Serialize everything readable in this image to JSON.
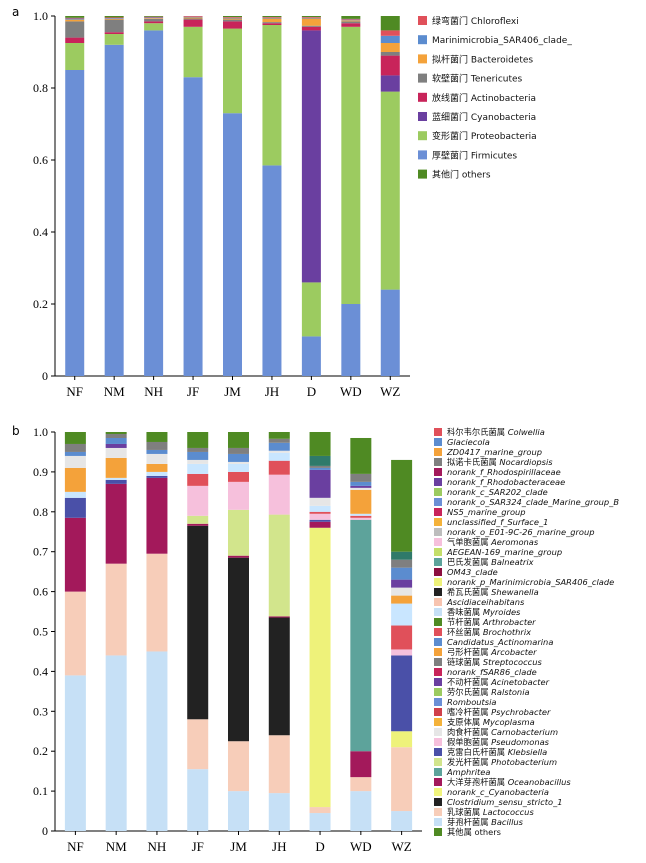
{
  "chart_data": [
    {
      "panel": "a",
      "type": "bar",
      "stacked": true,
      "categories": [
        "NF",
        "NM",
        "NH",
        "JF",
        "JM",
        "JH",
        "D",
        "WD",
        "WZ"
      ],
      "ylim": [
        0,
        1.0
      ],
      "yticks": [
        "0",
        "0.2",
        "0.4",
        "0.6",
        "0.8",
        "1.0"
      ],
      "series": [
        {
          "name": "厚壁菌门 Firmicutes",
          "color": "#6b8fd6",
          "values": [
            0.85,
            0.92,
            0.96,
            0.83,
            0.73,
            0.585,
            0.11,
            0.2,
            0.24
          ]
        },
        {
          "name": "变形菌门 Proteobacteria",
          "color": "#9ccb60",
          "values": [
            0.075,
            0.03,
            0.02,
            0.14,
            0.235,
            0.39,
            0.15,
            0.77,
            0.55
          ]
        },
        {
          "name": "蓝细菌门 Cyanobacteria",
          "color": "#6a3fa0",
          "values": [
            0,
            0,
            0,
            0,
            0,
            0,
            0.7,
            0,
            0.045
          ]
        },
        {
          "name": "放线菌门 Actinobacteria",
          "color": "#c8245a",
          "values": [
            0.015,
            0.005,
            0.005,
            0.02,
            0.02,
            0.005,
            0.01,
            0.01,
            0.055
          ]
        },
        {
          "name": "软壁菌门 Tenericutes",
          "color": "#7f7f7f",
          "values": [
            0.045,
            0.035,
            0.007,
            0.003,
            0.005,
            0.003,
            0.003,
            0.005,
            0.01
          ]
        },
        {
          "name": "拟杆菌门 Bacteroidetes",
          "color": "#f4a23a",
          "values": [
            0.005,
            0.002,
            0.002,
            0.003,
            0.003,
            0.01,
            0.02,
            0.003,
            0.025
          ]
        },
        {
          "name": "Marinimicrobia_SAR406_clade_",
          "color": "#5b8ccf",
          "values": [
            0.003,
            0.002,
            0.002,
            0.002,
            0.002,
            0.002,
            0.002,
            0.002,
            0.02
          ]
        },
        {
          "name": "绿弯菌门 Chloroflexi",
          "color": "#e0505a",
          "values": [
            0.002,
            0.002,
            0.002,
            0.002,
            0.002,
            0.002,
            0.002,
            0.002,
            0.015
          ]
        },
        {
          "name": "其他门 others",
          "color": "#4f8a23",
          "values": [
            0.005,
            0.004,
            0.002,
            0.0,
            0.003,
            0.003,
            0.003,
            0.008,
            0.04
          ]
        }
      ],
      "legend": [
        {
          "zh": "绿弯菌门",
          "en": "Chloroflexi",
          "color": "#e0505a",
          "italic": false
        },
        {
          "zh": "",
          "en": "Marinimicrobia_SAR406_clade_",
          "color": "#5b8ccf",
          "italic": false
        },
        {
          "zh": "拟杆菌门",
          "en": "Bacteroidetes",
          "color": "#f4a23a",
          "italic": false
        },
        {
          "zh": "软壁菌门",
          "en": "Tenericutes",
          "color": "#7f7f7f",
          "italic": false
        },
        {
          "zh": "放线菌门",
          "en": "Actinobacteria",
          "color": "#c8245a",
          "italic": false
        },
        {
          "zh": "蓝细菌门",
          "en": "Cyanobacteria",
          "color": "#6a3fa0",
          "italic": false
        },
        {
          "zh": "变形菌门",
          "en": "Proteobacteria",
          "color": "#9ccb60",
          "italic": false
        },
        {
          "zh": "厚壁菌门",
          "en": "Firmicutes",
          "color": "#6b8fd6",
          "italic": false
        },
        {
          "zh": "其他门",
          "en": "others",
          "color": "#4f8a23",
          "italic": false
        }
      ]
    },
    {
      "panel": "b",
      "type": "bar",
      "stacked": true,
      "categories": [
        "NF",
        "NM",
        "NH",
        "JF",
        "JM",
        "JH",
        "D",
        "WD",
        "WZ"
      ],
      "ylim": [
        0,
        1.0
      ],
      "yticks": [
        "0",
        "0.1",
        "0.2",
        "0.3",
        "0.4",
        "0.5",
        "0.6",
        "0.7",
        "0.8",
        "0.9",
        "1.0"
      ],
      "series": [
        {
          "name": "芽孢杆菌属 Bacillus",
          "color": "#c6e0f6",
          "values": [
            0.39,
            0.44,
            0.45,
            0.155,
            0.1,
            0.095,
            0.045,
            0.1,
            0.05
          ]
        },
        {
          "name": "乳球菌属 Lactococcus",
          "color": "#f7cdb9",
          "values": [
            0.21,
            0.23,
            0.245,
            0.125,
            0.125,
            0.145,
            0.015,
            0.035,
            0.16
          ]
        },
        {
          "name": "norank_p_Marinimicrobia_SAR406_clade",
          "color": "#eef27a",
          "values": [
            0,
            0,
            0,
            0,
            0,
            0,
            0.7,
            0,
            0.04
          ]
        },
        {
          "name": "Clostridium_sensu_stricto_1",
          "color": "#222222",
          "values": [
            0,
            0,
            0,
            0.485,
            0.46,
            0.295,
            0,
            0,
            0
          ]
        },
        {
          "name": "大洋芽孢杆菌属 Oceanobacillus",
          "color": "#a3195b",
          "values": [
            0.185,
            0.2,
            0.19,
            0.005,
            0.005,
            0.003,
            0.015,
            0.065,
            0
          ]
        },
        {
          "name": "克雷白氏杆菌属 Klebsiella",
          "color": "#4a50a8",
          "values": [
            0.05,
            0.01,
            0.005,
            0,
            0,
            0,
            0.005,
            0,
            0.19
          ]
        },
        {
          "name": "Amphritea",
          "color": "#5da39b",
          "values": [
            0,
            0,
            0,
            0,
            0,
            0,
            0,
            0.58,
            0
          ]
        },
        {
          "name": "发光杆菌属 Photobacterium",
          "color": "#d2e58c",
          "values": [
            0,
            0,
            0,
            0.02,
            0.115,
            0.255,
            0,
            0,
            0
          ]
        },
        {
          "name": "假单胞菌属 Pseudomonas",
          "color": "#f6c0dc",
          "values": [
            0,
            0,
            0,
            0.075,
            0.07,
            0.1,
            0.015,
            0.005,
            0.015
          ]
        },
        {
          "name": "环丝菌属 Brochothrix",
          "color": "#e0505a",
          "values": [
            0,
            0,
            0,
            0.03,
            0.025,
            0.035,
            0.005,
            0.005,
            0.06
          ]
        },
        {
          "name": "科尔韦尔氏菌属 Colwellia",
          "color": "#c9e6ff",
          "values": [
            0.015,
            0.005,
            0.01,
            0.025,
            0.02,
            0.02,
            0.015,
            0.005,
            0.055
          ]
        },
        {
          "name": "ZD0417_marine_group",
          "color": "#f4a23a",
          "values": [
            0.06,
            0.05,
            0.02,
            0,
            0,
            0,
            0,
            0.06,
            0.02
          ]
        },
        {
          "name": "拟诺卡氏菌属 Nocardiopsis",
          "color": "#e6e6e6",
          "values": [
            0.03,
            0.025,
            0.025,
            0.01,
            0.005,
            0.005,
            0.02,
            0.005,
            0.02
          ]
        },
        {
          "name": "norank_f_Rhodobacteraceae",
          "color": "#6a3fa0",
          "values": [
            0,
            0.01,
            0,
            0,
            0,
            0,
            0.07,
            0.005,
            0.02
          ]
        },
        {
          "name": "Glaciecola",
          "color": "#5b8ccf",
          "values": [
            0.01,
            0.015,
            0.01,
            0.02,
            0.02,
            0.02,
            0.005,
            0.01,
            0.03
          ]
        },
        {
          "name": "链球菌属 Streptococcus",
          "color": "#7f7f7f",
          "values": [
            0.02,
            0.01,
            0.02,
            0.01,
            0.015,
            0.01,
            0.005,
            0.02,
            0.02
          ]
        },
        {
          "name": "巴氏发菌属 Balneatrix",
          "color": "#2f7a6a",
          "values": [
            0,
            0,
            0,
            0,
            0,
            0,
            0.025,
            0,
            0.02
          ]
        },
        {
          "name": "其他属 others",
          "color": "#4f8a23",
          "values": [
            0.03,
            0.006,
            0.025,
            0.04,
            0.04,
            0.017,
            0.06,
            0.09,
            0.23
          ]
        }
      ],
      "legend": [
        {
          "zh": "科尔韦尔氏菌属",
          "en": "Colwellia",
          "color": "#e0505a",
          "italic": true
        },
        {
          "zh": "",
          "en": "Glaciecola",
          "color": "#5b8ccf",
          "italic": true
        },
        {
          "zh": "",
          "en": "ZD0417_marine_group",
          "color": "#f4a23a",
          "italic": true
        },
        {
          "zh": "拟诺卡氏菌属",
          "en": "Nocardiopsis",
          "color": "#7f7f7f",
          "italic": true
        },
        {
          "zh": "",
          "en": "norank_f_Rhodospirillaceae",
          "color": "#a3195b",
          "italic": true
        },
        {
          "zh": "",
          "en": "norank_f_Rhodobacteraceae",
          "color": "#6a3fa0",
          "italic": true
        },
        {
          "zh": "",
          "en": "norank_c_SAR202_clade",
          "color": "#9ccb60",
          "italic": true
        },
        {
          "zh": "",
          "en": "norank_o_SAR324_clade_Marine_group_B",
          "color": "#6b8fd6",
          "italic": true
        },
        {
          "zh": "",
          "en": "NS5_marine_group",
          "color": "#c8245a",
          "italic": true
        },
        {
          "zh": "",
          "en": "unclassified_f_Surface_1",
          "color": "#f4b23a",
          "italic": true
        },
        {
          "zh": "",
          "en": "norank_o_E01-9C-26_marine_group",
          "color": "#bdbdbd",
          "italic": true
        },
        {
          "zh": "气单胞菌属",
          "en": "Aeromonas",
          "color": "#f6c0dc",
          "italic": true
        },
        {
          "zh": "",
          "en": "AEGEAN-169_marine_group",
          "color": "#c4df6a",
          "italic": true
        },
        {
          "zh": "巴氏发菌属",
          "en": "Balneatrix",
          "color": "#5da39b",
          "italic": true
        },
        {
          "zh": "",
          "en": "OM43_clade",
          "color": "#8c0f3f",
          "italic": true
        },
        {
          "zh": "",
          "en": "norank_p_Marinimicrobia_SAR406_clade",
          "color": "#eef27a",
          "italic": true
        },
        {
          "zh": "希瓦氏菌属",
          "en": "Shewanella",
          "color": "#222222",
          "italic": true
        },
        {
          "zh": "",
          "en": "Ascidiaceihabitans",
          "color": "#f7c4b0",
          "italic": true
        },
        {
          "zh": "香味菌属",
          "en": "Myroides",
          "color": "#c6e0f6",
          "italic": true
        },
        {
          "zh": "节杆菌属",
          "en": "Arthrobacter",
          "color": "#4f8a23",
          "italic": true
        },
        {
          "zh": "环丝菌属",
          "en": "Brochothrix",
          "color": "#e0505a",
          "italic": true
        },
        {
          "zh": "",
          "en": "Candidatus_Actinomarina",
          "color": "#5b8ccf",
          "italic": true
        },
        {
          "zh": "弓形杆菌属",
          "en": "Arcobacter",
          "color": "#f4a23a",
          "italic": true
        },
        {
          "zh": "链球菌属",
          "en": "Streptococcus",
          "color": "#7f7f7f",
          "italic": true
        },
        {
          "zh": "",
          "en": "norank_fSAR86_clade",
          "color": "#c8245a",
          "italic": true
        },
        {
          "zh": "不动杆菌属",
          "en": "Acinetobacter",
          "color": "#6a3fa0",
          "italic": true
        },
        {
          "zh": "劳尔氏菌属",
          "en": "Ralstonia",
          "color": "#9ccb60",
          "italic": true
        },
        {
          "zh": "",
          "en": "Romboutsia",
          "color": "#6b8fd6",
          "italic": true
        },
        {
          "zh": "嗜冷杆菌属",
          "en": "Psychrobacter",
          "color": "#d0404a",
          "italic": true
        },
        {
          "zh": "支原体属",
          "en": "Mycoplasma",
          "color": "#f4b23a",
          "italic": true
        },
        {
          "zh": "肉食杆菌属",
          "en": "Carnobacterium",
          "color": "#e6e6e6",
          "italic": true
        },
        {
          "zh": "假单胞菌属",
          "en": "Pseudomonas",
          "color": "#f6c0dc",
          "italic": true
        },
        {
          "zh": "克雷白氏杆菌属",
          "en": "Klebsiella",
          "color": "#4a50a8",
          "italic": true
        },
        {
          "zh": "发光杆菌属",
          "en": "Photobacterium",
          "color": "#d2e58c",
          "italic": true
        },
        {
          "zh": "",
          "en": "Amphritea",
          "color": "#5da39b",
          "italic": true
        },
        {
          "zh": "大洋芽孢杆菌属",
          "en": "Oceanobacillus",
          "color": "#a3195b",
          "italic": true
        },
        {
          "zh": "",
          "en": "norank_c_Cyanobacteria",
          "color": "#f1f57e",
          "italic": true
        },
        {
          "zh": "",
          "en": "Clostridium_sensu_stricto_1",
          "color": "#222222",
          "italic": true
        },
        {
          "zh": "乳球菌属",
          "en": "Lactococcus",
          "color": "#f7cdb9",
          "italic": true
        },
        {
          "zh": "芽孢杆菌属",
          "en": "Bacillus",
          "color": "#c6e0f6",
          "italic": true
        },
        {
          "zh": "其他属",
          "en": "others",
          "color": "#4f8a23",
          "italic": false
        }
      ]
    }
  ]
}
